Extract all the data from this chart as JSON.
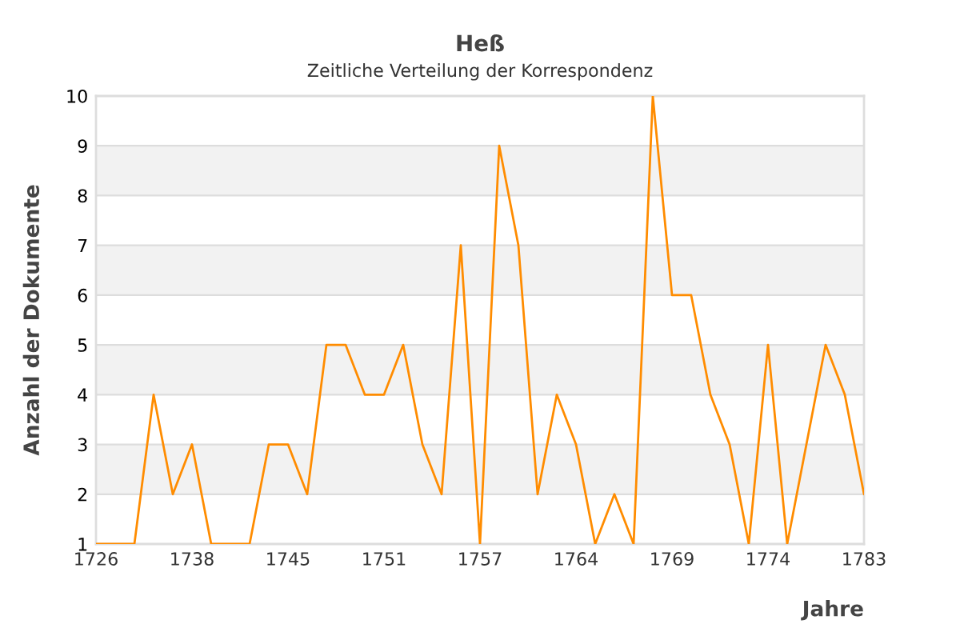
{
  "chart_data": {
    "type": "line",
    "title": "Heß",
    "subtitle": "Zeitliche Verteilung der Korrespondenz",
    "xlabel": "Jahre",
    "ylabel": "Anzahl der Dokumente",
    "categories": [
      "1726",
      null,
      null,
      null,
      null,
      "1738",
      null,
      null,
      null,
      null,
      "1745",
      null,
      null,
      null,
      null,
      "1751",
      null,
      null,
      null,
      null,
      "1757",
      null,
      null,
      null,
      null,
      "1764",
      null,
      null,
      null,
      null,
      "1769",
      null,
      null,
      null,
      null,
      "1774",
      null,
      null,
      null,
      null,
      "1783"
    ],
    "series": [
      {
        "color": "#ff8c00",
        "values": [
          1,
          1,
          1,
          4,
          2,
          3,
          1,
          1,
          1,
          3,
          3,
          2,
          5,
          5,
          4,
          4,
          5,
          3,
          2,
          7,
          1,
          9,
          7,
          2,
          4,
          3,
          1,
          2,
          1,
          10,
          6,
          6,
          4,
          3,
          1,
          5,
          1,
          3,
          5,
          4,
          2
        ]
      }
    ],
    "ylim": [
      1,
      10
    ],
    "yticks": [
      1,
      2,
      3,
      4,
      5,
      6,
      7,
      8,
      9,
      10
    ],
    "grid": "y",
    "bands": [
      {
        "axis": "y",
        "from": 2,
        "to": 3,
        "color": "#f2f2f2"
      },
      {
        "axis": "y",
        "from": 4,
        "to": 5,
        "color": "#f2f2f2"
      },
      {
        "axis": "y",
        "from": 6,
        "to": 7,
        "color": "#f2f2f2"
      },
      {
        "axis": "y",
        "from": 8,
        "to": 9,
        "color": "#f2f2f2"
      }
    ],
    "marker": "none",
    "line_style": "solid"
  }
}
